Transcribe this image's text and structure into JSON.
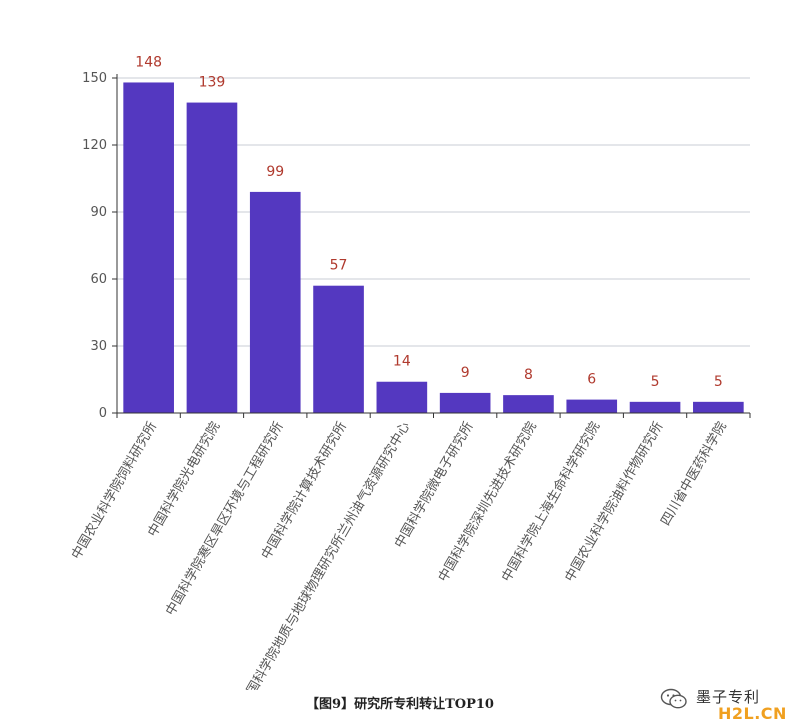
{
  "chart_data": {
    "type": "bar",
    "categories": [
      "中国农业科学院饲料研究所",
      "中国科学院光电研究院",
      "中国科学院寒区旱区环境与工程研究所",
      "中国科学院计算技术研究所",
      "中国科学院地质与地球物理研究所兰州油气资源研究中心",
      "中国科学院微电子研究所",
      "中国科学院深圳先进技术研究院",
      "中国科学院上海生命科学研究院",
      "中国农业科学院油料作物研究所",
      "四川省中医药科学院"
    ],
    "values": [
      148,
      139,
      99,
      57,
      14,
      9,
      8,
      6,
      5,
      5
    ],
    "ylim": [
      0,
      150
    ],
    "yticks": [
      0,
      30,
      60,
      90,
      120,
      150
    ],
    "grid": true,
    "colors": {
      "bar": "#5438c0",
      "data_label": "#b03a2e",
      "grid": "#c8cdd6",
      "axis": "#333333"
    },
    "caption": "【图9】研究所专利转让TOP10"
  },
  "watermark": {
    "icon": "wechat-icon",
    "title": "墨子专利",
    "site": "H2L.CN"
  }
}
